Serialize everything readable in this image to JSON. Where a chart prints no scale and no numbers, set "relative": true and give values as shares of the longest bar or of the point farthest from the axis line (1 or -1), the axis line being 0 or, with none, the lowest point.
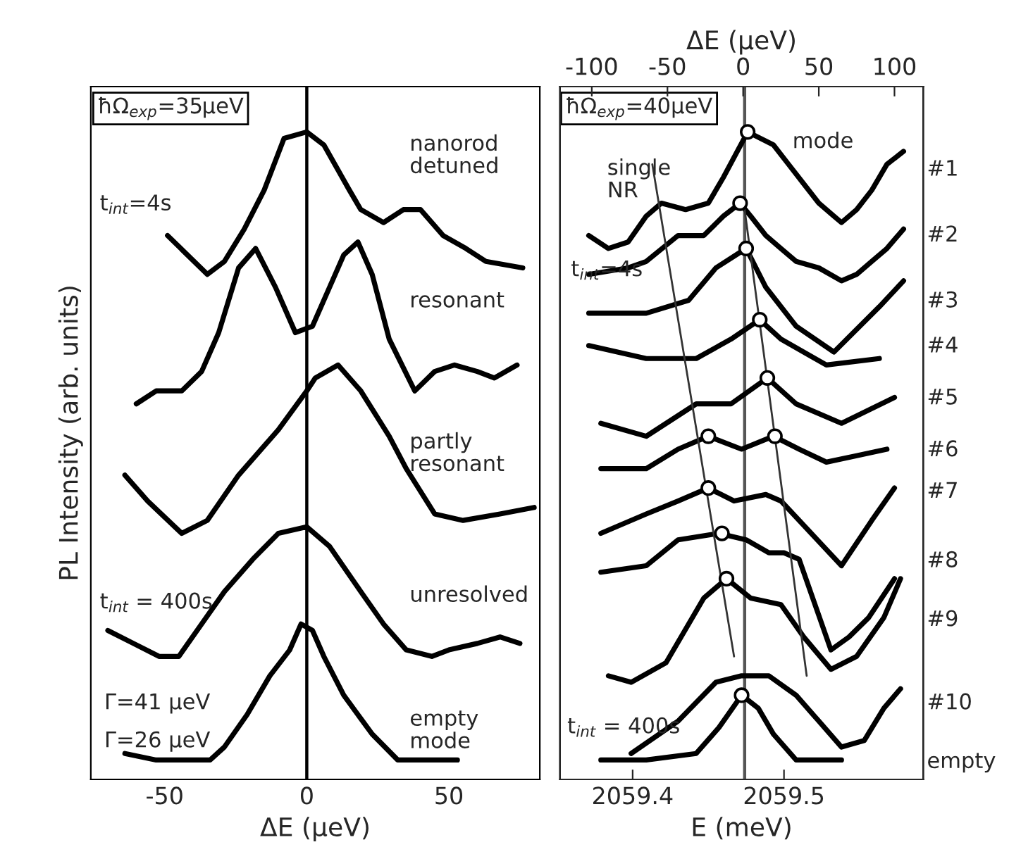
{
  "chart_data": [
    {
      "type": "line",
      "relative": true,
      "xlabel": "ΔE (µeV)",
      "ylabel": "PL Intensity (arb. units)",
      "xlim": [
        -76,
        82
      ],
      "xticks": [
        -50,
        0,
        50
      ],
      "tick_labels": "x",
      "ref_lines": [
        {
          "axis": "x",
          "value": 0,
          "color": "#000000"
        }
      ],
      "annotations": [
        "nanorod\ndetuned",
        "resonant",
        "partly\nresonant",
        "unresolved",
        "empty\nmode",
        "ħΩ$_{exp}$=35µeV",
        "t$_{int}$=4s",
        "t$_{int}$ = 400s",
        "Γ=41 µeV",
        "Γ=26 µeV"
      ],
      "series": [
        {
          "color": "#000000",
          "x": [
            -49,
            -42,
            -35,
            -29,
            -22,
            -15,
            -8,
            0,
            6,
            15,
            19,
            27,
            34,
            40,
            48,
            56,
            63,
            76
          ],
          "values": [
            0.84,
            0.81,
            0.78,
            0.8,
            0.85,
            0.91,
            0.99,
            1.0,
            0.98,
            0.91,
            0.88,
            0.86,
            0.88,
            0.88,
            0.84,
            0.82,
            0.8,
            0.79
          ]
        },
        {
          "color": "#000000",
          "x": [
            -60,
            -53,
            -44,
            -37,
            -31,
            -24,
            -18,
            -11,
            -4,
            2,
            8,
            13,
            18,
            23,
            29,
            38,
            45,
            52,
            60,
            66,
            74
          ],
          "values": [
            0.58,
            0.6,
            0.6,
            0.63,
            0.69,
            0.79,
            0.82,
            0.76,
            0.69,
            0.7,
            0.76,
            0.81,
            0.83,
            0.78,
            0.68,
            0.6,
            0.63,
            0.64,
            0.63,
            0.62,
            0.64
          ]
        },
        {
          "color": "#000000",
          "x": [
            -64,
            -56,
            -44,
            -35,
            -24,
            -10,
            0,
            3,
            11,
            19,
            29,
            35,
            45,
            55,
            68,
            80
          ],
          "values": [
            0.47,
            0.43,
            0.38,
            0.4,
            0.47,
            0.54,
            0.6,
            0.62,
            0.64,
            0.6,
            0.53,
            0.48,
            0.41,
            0.4,
            0.41,
            0.42
          ]
        },
        {
          "color": "#000000",
          "x": [
            -70,
            -61,
            -52,
            -45,
            -37,
            -29,
            -19,
            -10,
            0,
            8,
            19,
            27,
            35,
            44,
            50,
            60,
            68,
            75
          ],
          "values": [
            0.23,
            0.21,
            0.19,
            0.19,
            0.24,
            0.29,
            0.34,
            0.38,
            0.39,
            0.36,
            0.29,
            0.24,
            0.2,
            0.19,
            0.2,
            0.21,
            0.22,
            0.21
          ]
        },
        {
          "color": "#000000",
          "x": [
            -64,
            -53,
            -34,
            -29,
            -21,
            -13,
            -6,
            -2,
            2,
            6,
            13,
            23,
            32,
            44,
            53
          ],
          "values": [
            0.04,
            0.03,
            0.03,
            0.05,
            0.1,
            0.16,
            0.2,
            0.24,
            0.23,
            0.19,
            0.13,
            0.07,
            0.03,
            0.03,
            0.03
          ]
        }
      ]
    },
    {
      "type": "line",
      "relative": true,
      "xlabel": "E (meV)",
      "x2label": "ΔE (µeV)",
      "xlim": [
        2059.352,
        2059.592
      ],
      "xticks": [
        2059.4,
        2059.5
      ],
      "x2lim": [
        -121,
        119
      ],
      "x2ticks": [
        -100,
        -50,
        0,
        50,
        100
      ],
      "tick_labels": "x",
      "ref_lines": [
        {
          "axis": "x",
          "value": 2059.474,
          "color": "#555555"
        }
      ],
      "annotations": [
        "mode",
        "#1",
        "#2",
        "#3",
        "#4",
        "#5",
        "#6",
        "#7",
        "#8",
        "#9",
        "#10",
        "empty",
        "ħΩ$_{exp}$=40µeV",
        "t$_{int}$=4s",
        "t$_{int}$ = 400s",
        "single\nNR"
      ],
      "series": [
        {
          "color": "#000000",
          "x": [
            2059.371,
            2059.384,
            2059.397,
            2059.409,
            2059.419,
            2059.435,
            2059.45,
            2059.46,
            2059.476,
            2059.493,
            2059.503,
            2059.513,
            2059.523,
            2059.533,
            2059.538,
            2059.548,
            2059.558,
            2059.568,
            2059.579
          ],
          "values": [
            0.84,
            0.82,
            0.83,
            0.87,
            0.89,
            0.88,
            0.89,
            0.93,
            1.0,
            0.98,
            0.95,
            0.92,
            0.89,
            0.87,
            0.86,
            0.88,
            0.91,
            0.95,
            0.97
          ]
        },
        {
          "color": "#000000",
          "x": [
            2059.371,
            2059.397,
            2059.409,
            2059.43,
            2059.447,
            2059.46,
            2059.471,
            2059.478,
            2059.488,
            2059.498,
            2059.508,
            2059.523,
            2059.538,
            2059.548,
            2059.558,
            2059.568,
            2059.579
          ],
          "values": [
            0.78,
            0.79,
            0.8,
            0.84,
            0.84,
            0.87,
            0.89,
            0.87,
            0.84,
            0.82,
            0.8,
            0.79,
            0.77,
            0.78,
            0.8,
            0.82,
            0.85
          ]
        },
        {
          "color": "#000000",
          "x": [
            2059.371,
            2059.409,
            2059.437,
            2059.455,
            2059.475,
            2059.488,
            2059.508,
            2059.533,
            2059.563,
            2059.579
          ],
          "values": [
            0.72,
            0.72,
            0.74,
            0.79,
            0.82,
            0.76,
            0.7,
            0.66,
            0.73,
            0.77
          ]
        },
        {
          "color": "#000000",
          "x": [
            2059.371,
            2059.409,
            2059.442,
            2059.465,
            2059.484,
            2059.498,
            2059.528,
            2059.563
          ],
          "values": [
            0.67,
            0.65,
            0.65,
            0.68,
            0.71,
            0.68,
            0.64,
            0.65
          ]
        },
        {
          "color": "#000000",
          "x": [
            2059.379,
            2059.409,
            2059.442,
            2059.465,
            2059.489,
            2059.508,
            2059.538,
            2059.573
          ],
          "values": [
            0.55,
            0.53,
            0.58,
            0.58,
            0.62,
            0.58,
            0.55,
            0.59
          ]
        },
        {
          "color": "#000000",
          "x": [
            2059.379,
            2059.409,
            2059.43,
            2059.45,
            2059.472,
            2059.493,
            2059.51,
            2059.528,
            2059.548,
            2059.568
          ],
          "values": [
            0.48,
            0.48,
            0.51,
            0.53,
            0.51,
            0.53,
            0.51,
            0.49,
            0.5,
            0.51
          ]
        },
        {
          "color": "#000000",
          "x": [
            2059.379,
            2059.409,
            2059.43,
            2059.45,
            2059.467,
            2059.488,
            2059.498,
            2059.518,
            2059.538,
            2059.558,
            2059.573
          ],
          "values": [
            0.38,
            0.41,
            0.43,
            0.45,
            0.43,
            0.44,
            0.43,
            0.38,
            0.33,
            0.4,
            0.45
          ]
        },
        {
          "color": "#000000",
          "x": [
            2059.379,
            2059.409,
            2059.43,
            2059.457,
            2059.475,
            2059.49,
            2059.5,
            2059.51,
            2059.531,
            2059.543,
            2059.556,
            2059.573
          ],
          "values": [
            0.32,
            0.33,
            0.37,
            0.38,
            0.37,
            0.35,
            0.35,
            0.34,
            0.2,
            0.22,
            0.25,
            0.31
          ]
        },
        {
          "color": "#000000",
          "x": [
            2059.384,
            2059.399,
            2059.422,
            2059.447,
            2059.462,
            2059.478,
            2059.498,
            2059.513,
            2059.531,
            2059.548,
            2059.566,
            2059.577
          ],
          "values": [
            0.16,
            0.15,
            0.18,
            0.28,
            0.31,
            0.28,
            0.27,
            0.22,
            0.17,
            0.19,
            0.25,
            0.31
          ]
        },
        {
          "color": "#000000",
          "x": [
            2059.399,
            2059.43,
            2059.455,
            2059.472,
            2059.49,
            2059.508,
            2059.523,
            2059.538,
            2059.553,
            2059.566,
            2059.577
          ],
          "values": [
            0.04,
            0.09,
            0.15,
            0.16,
            0.16,
            0.13,
            0.09,
            0.05,
            0.06,
            0.11,
            0.14
          ]
        },
        {
          "color": "#000000",
          "x": [
            2059.379,
            2059.409,
            2059.442,
            2059.457,
            2059.472,
            2059.483,
            2059.493,
            2059.508,
            2059.523,
            2059.538
          ],
          "values": [
            0.03,
            0.03,
            0.04,
            0.08,
            0.13,
            0.11,
            0.07,
            0.03,
            0.03,
            0.03
          ]
        },
        {
          "color": "#333333",
          "x": [
            2059.413,
            2059.467
          ],
          "values": [
            0.95,
            0.19
          ]
        },
        {
          "color": "#333333",
          "x": [
            2059.474,
            2059.515
          ],
          "values": [
            0.88,
            0.16
          ]
        },
        {
          "type": "scatter",
          "marker": "circle",
          "color": "#000000",
          "x": [
            2059.476,
            2059.471,
            2059.475,
            2059.484,
            2059.489,
            2059.45,
            2059.494,
            2059.45,
            2059.459,
            2059.462,
            2059.472
          ],
          "values": [
            1.0,
            0.89,
            0.82,
            0.71,
            0.62,
            0.53,
            0.53,
            0.45,
            0.38,
            0.31,
            0.13
          ]
        }
      ]
    }
  ]
}
